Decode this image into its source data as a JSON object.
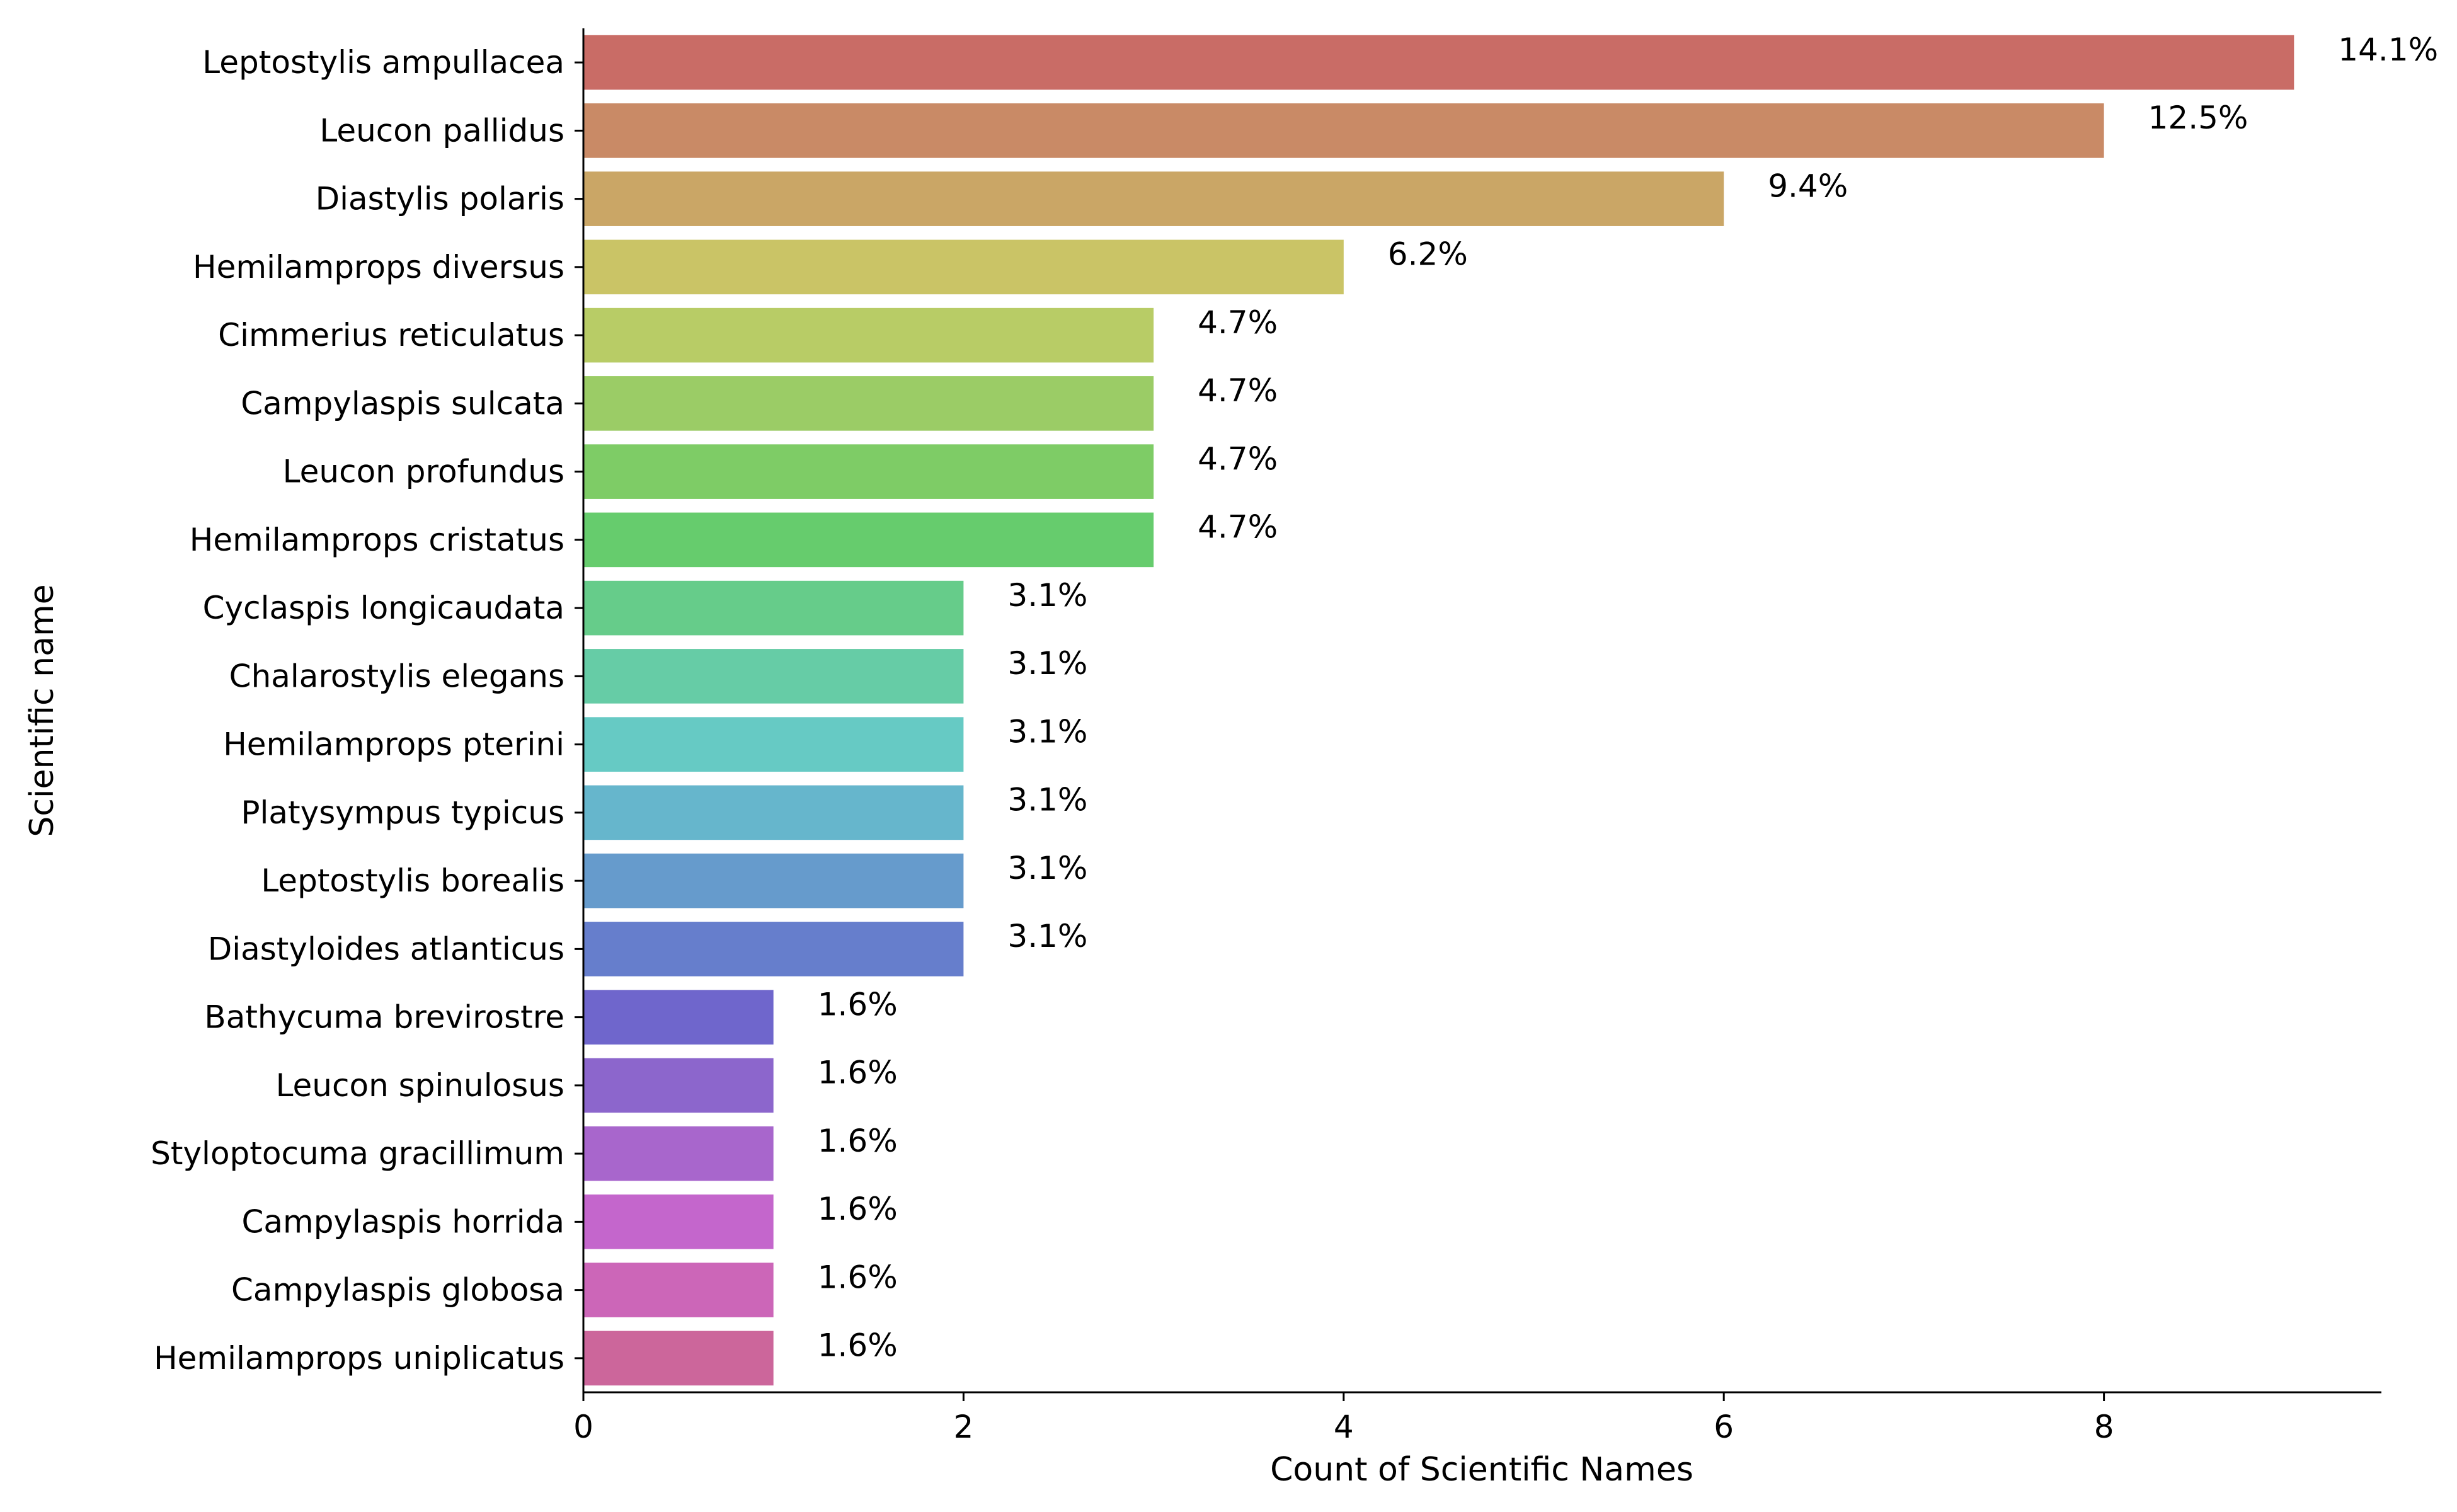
{
  "chart_data": {
    "type": "bar",
    "orientation": "horizontal",
    "xlabel": "Count of Scientific Names",
    "ylabel": "Scientific name",
    "xlim": [
      0,
      9.45
    ],
    "xticks": [
      0,
      2,
      4,
      6,
      8
    ],
    "grid": false,
    "categories": [
      "Leptostylis ampullacea",
      "Leucon pallidus",
      "Diastylis polaris",
      "Hemilamprops diversus",
      "Cimmerius reticulatus",
      "Campylaspis sulcata",
      "Leucon profundus",
      "Hemilamprops cristatus",
      "Cyclaspis longicaudata",
      "Chalarostylis elegans",
      "Hemilamprops pterini",
      "Platysympus typicus",
      "Leptostylis borealis",
      "Diastyloides atlanticus",
      "Bathycuma brevirostre",
      "Leucon spinulosus",
      "Styloptocuma gracillimum",
      "Campylaspis horrida",
      "Campylaspis globosa",
      "Hemilamprops uniplicatus"
    ],
    "values": [
      9,
      8,
      6,
      4,
      3,
      3,
      3,
      3,
      2,
      2,
      2,
      2,
      2,
      2,
      1,
      1,
      1,
      1,
      1,
      1
    ],
    "data_labels": [
      "14.1%",
      "12.5%",
      "9.4%",
      "6.2%",
      "4.7%",
      "4.7%",
      "4.7%",
      "4.7%",
      "3.1%",
      "3.1%",
      "3.1%",
      "3.1%",
      "3.1%",
      "3.1%",
      "1.6%",
      "1.6%",
      "1.6%",
      "1.6%",
      "1.6%",
      "1.6%"
    ],
    "colors": [
      "#c96c66",
      "#c98a66",
      "#caa666",
      "#cac466",
      "#b8cc66",
      "#9bcc66",
      "#7ecc66",
      "#66cc6d",
      "#66cc8a",
      "#66cca6",
      "#66cac4",
      "#66b6cc",
      "#669bcc",
      "#667ecc",
      "#6f66cc",
      "#8c66cc",
      "#a866cc",
      "#c466cc",
      "#cc66b8",
      "#cc669b"
    ]
  }
}
